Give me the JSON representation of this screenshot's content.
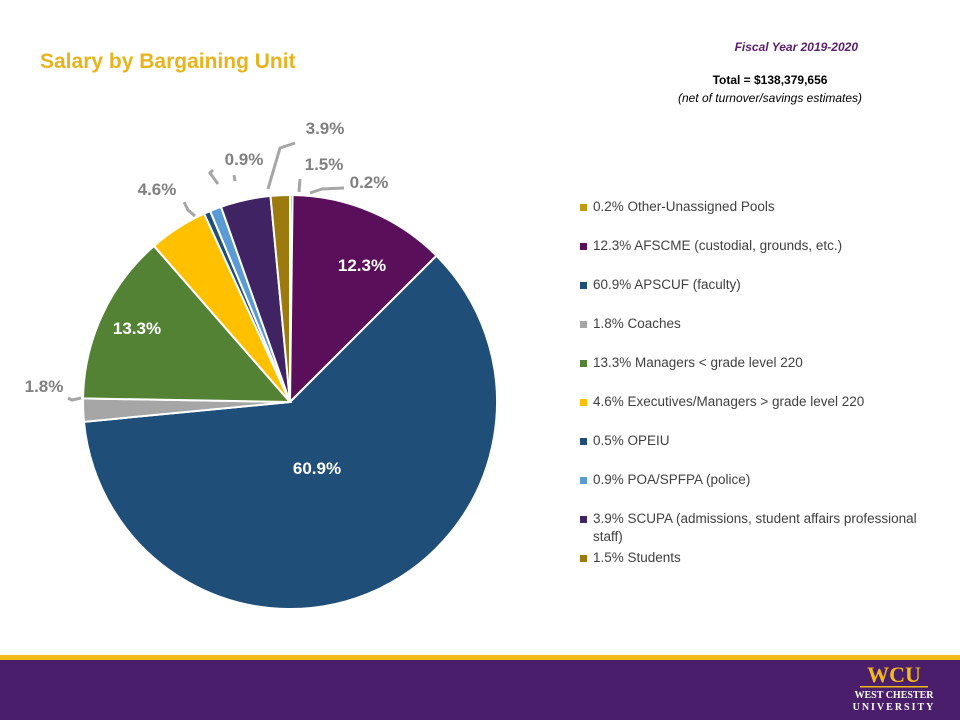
{
  "header": {
    "title": "Salary by Bargaining Unit",
    "fiscal_year": "Fiscal Year 2019-2020",
    "total": "Total = $138,379,656",
    "net_note": "(net of turnover/savings estimates)"
  },
  "logo": {
    "mark": "WCU",
    "line1": "WEST CHESTER",
    "line2": "UNIVERSITY"
  },
  "colors": {
    "title": "#e8b31c",
    "footer": "#4b1e6b",
    "footer_stripe": "#f2bb18"
  },
  "chart_data": {
    "type": "pie",
    "title": "Salary by Bargaining Unit",
    "start": "12 o'clock, clockwise",
    "slices": [
      {
        "label": "0.2% Other-Unassigned Pools",
        "value": 0.2,
        "data_label": "0.2%",
        "color": "#c59a12"
      },
      {
        "label": "12.3% AFSCME (custodial, grounds, etc.)",
        "value": 12.3,
        "data_label": "12.3%",
        "color": "#5a0f5a"
      },
      {
        "label": "60.9% APSCUF (faculty)",
        "value": 60.9,
        "data_label": "60.9%",
        "color": "#1f4e79"
      },
      {
        "label": "1.8% Coaches",
        "value": 1.8,
        "data_label": "1.8%",
        "color": "#a6a6a6"
      },
      {
        "label": "13.3% Managers < grade level 220",
        "value": 13.3,
        "data_label": "13.3%",
        "color": "#548235"
      },
      {
        "label": "4.6% Executives/Managers > grade level 220",
        "value": 4.6,
        "data_label": "4.6%",
        "color": "#ffc000"
      },
      {
        "label": "0.5% OPEIU",
        "value": 0.5,
        "data_label": "",
        "color": "#1f4e79"
      },
      {
        "label": "0.9% POA/SPFPA (police)",
        "value": 0.9,
        "data_label": "0.9%",
        "color": "#5b9bd5"
      },
      {
        "label": "3.9% SCUPA (admissions, student affairs professional staff)",
        "value": 3.9,
        "data_label": "3.9%",
        "color": "#3f2363"
      },
      {
        "label": "1.5% Students",
        "value": 1.5,
        "data_label": "1.5%",
        "color": "#9c7a0e"
      }
    ],
    "legend_position": "right"
  }
}
